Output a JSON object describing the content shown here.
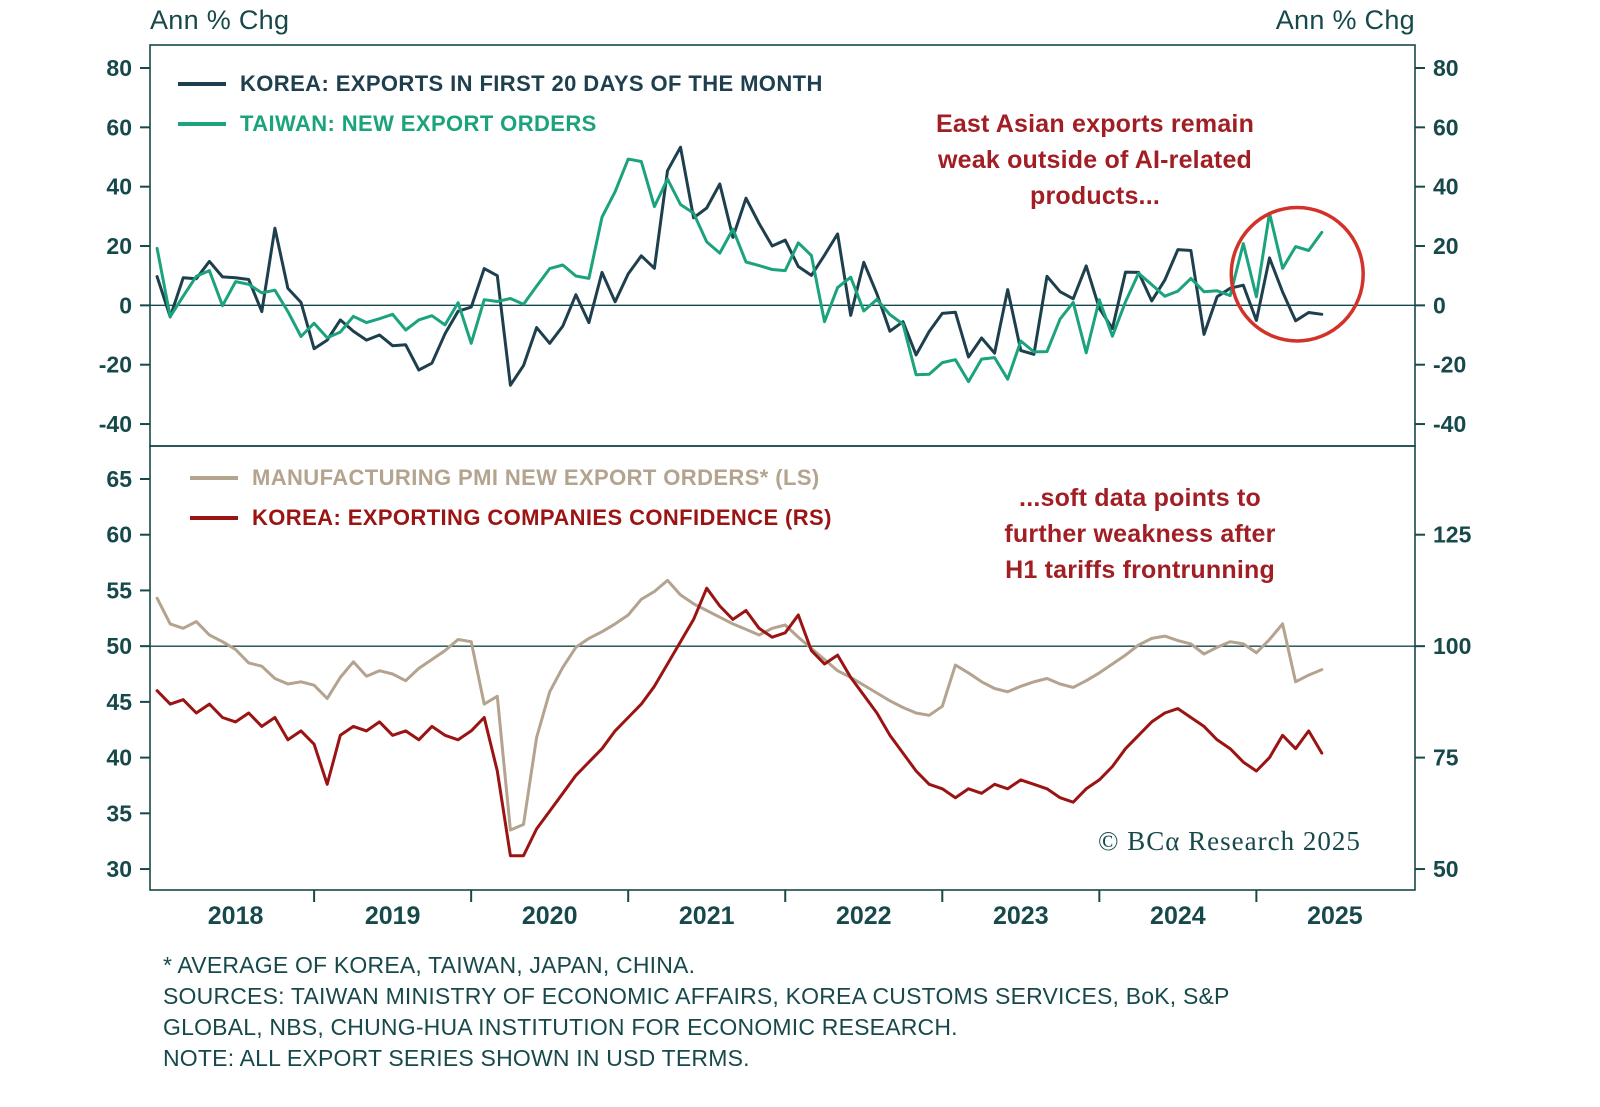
{
  "header": {
    "axis_title_left": "Ann % Chg",
    "axis_title_right": "Ann % Chg"
  },
  "x_axis": {
    "xlim": [
      2017.955,
      2026.01
    ],
    "tick_years": [
      2019,
      2020,
      2021,
      2022,
      2023,
      2024,
      2025
    ],
    "label_years": [
      2018,
      2019,
      2020,
      2021,
      2022,
      2023,
      2024,
      2025
    ]
  },
  "chart_data": [
    {
      "type": "line",
      "panel": "top",
      "x_start": 2018.0,
      "x_step": 0.083333,
      "ylim": [
        -47.4,
        87.75
      ],
      "yticks_left": [
        80,
        60,
        40,
        20,
        0,
        -20,
        -40
      ],
      "yticks_right": [
        80,
        60,
        40,
        20,
        0,
        -20,
        -40
      ],
      "ref_line": 0,
      "legend_position": "top-left",
      "series": [
        {
          "name": "KOREA: EXPORTS IN FIRST 20 DAYS OF THE MONTH",
          "color": "#1e3f4d",
          "axis": "left",
          "values": [
            9.7,
            -3.9,
            9.3,
            9.0,
            14.8,
            9.6,
            9.3,
            8.7,
            -2.1,
            26.0,
            5.7,
            1.0,
            -14.6,
            -11.7,
            -4.9,
            -8.7,
            -11.7,
            -10.0,
            -13.6,
            -13.3,
            -21.8,
            -19.5,
            -9.6,
            -2.0,
            -0.6,
            12.4,
            10.0,
            -26.9,
            -20.3,
            -7.5,
            -12.8,
            -7.0,
            3.6,
            -5.8,
            11.1,
            1.2,
            10.6,
            16.7,
            12.5,
            45.4,
            53.3,
            29.5,
            32.8,
            40.9,
            22.9,
            36.1,
            27.6,
            20.0,
            22.0,
            13.1,
            10.1,
            16.9,
            24.1,
            -3.4,
            14.5,
            3.9,
            -8.7,
            -5.5,
            -16.7,
            -8.8,
            -2.7,
            -2.3,
            -17.4,
            -11.0,
            -16.1,
            5.3,
            -15.2,
            -16.5,
            9.8,
            4.6,
            2.2,
            13.3,
            -1.0,
            -7.8,
            11.2,
            11.1,
            1.5,
            8.5,
            18.8,
            18.5,
            -9.8,
            2.9,
            5.8,
            6.8,
            -5.1,
            16.0,
            4.5,
            -5.2,
            -2.4,
            -3.0
          ]
        },
        {
          "name": "TAIWAN: NEW EXPORT ORDERS",
          "color": "#1ba37d",
          "axis": "left",
          "values": [
            19.2,
            -3.8,
            3.1,
            9.8,
            11.7,
            -0.1,
            8.0,
            7.1,
            4.2,
            5.1,
            -2.1,
            -10.5,
            -6.0,
            -10.9,
            -9.0,
            -3.7,
            -5.8,
            -4.5,
            -3.0,
            -8.3,
            -4.9,
            -3.5,
            -6.6,
            0.9,
            -12.8,
            1.9,
            1.3,
            2.3,
            0.4,
            6.5,
            12.4,
            13.6,
            9.9,
            9.1,
            29.7,
            38.3,
            49.3,
            48.5,
            33.3,
            42.6,
            34.0,
            31.1,
            21.4,
            17.6,
            25.7,
            14.6,
            13.4,
            12.1,
            11.7,
            21.1,
            16.8,
            -5.5,
            6.0,
            9.5,
            -1.9,
            2.0,
            -3.1,
            -6.3,
            -23.4,
            -23.2,
            -19.3,
            -18.3,
            -25.7,
            -18.1,
            -17.6,
            -24.9,
            -12.0,
            -15.7,
            -15.6,
            -4.6,
            1.0,
            -16.0,
            1.9,
            -10.4,
            1.2,
            10.8,
            7.0,
            3.1,
            4.8,
            9.1,
            4.6,
            4.9,
            3.3,
            20.8,
            2.9,
            31.1,
            12.5,
            19.8,
            18.5,
            24.6
          ]
        }
      ],
      "annotation": {
        "text": "East Asian exports remain\nweak outside of AI-related\nproducts...",
        "color": "#a01e24"
      },
      "highlight": {
        "cx_year": 2025.26,
        "cy_value": 10.5,
        "rx_years": 0.42,
        "ry_units": 22.5,
        "color": "#d23228"
      }
    },
    {
      "type": "line",
      "panel": "bottom",
      "x_start": 2018.0,
      "x_step": 0.083333,
      "ylim": [
        28.12,
        67.96
      ],
      "yticks_left": [
        65,
        60,
        55,
        50,
        45,
        40,
        35,
        30
      ],
      "yticks_right": [
        125,
        100,
        75,
        50
      ],
      "right_map": {
        "ls_base": 50,
        "rs_base": 100,
        "rs_per_ls": 2.5
      },
      "ref_line": 50,
      "legend_position": "top-left",
      "series": [
        {
          "name": "MANUFACTURING PMI NEW EXPORT ORDERS* (LS)",
          "color": "#b3a38f",
          "axis": "left",
          "values": [
            54.3,
            52.0,
            51.6,
            52.2,
            51.0,
            50.4,
            49.7,
            48.5,
            48.2,
            47.1,
            46.6,
            46.8,
            46.5,
            45.3,
            47.2,
            48.6,
            47.3,
            47.8,
            47.5,
            46.9,
            48.0,
            48.8,
            49.6,
            50.6,
            50.4,
            44.8,
            45.5,
            33.5,
            34.0,
            41.8,
            45.9,
            48.1,
            49.9,
            50.7,
            51.3,
            52.0,
            52.8,
            54.2,
            54.9,
            55.9,
            54.6,
            53.8,
            53.2,
            52.6,
            52.0,
            51.5,
            51.0,
            51.6,
            51.9,
            50.8,
            49.8,
            48.8,
            47.8,
            47.2,
            46.5,
            45.8,
            45.1,
            44.5,
            44.0,
            43.8,
            44.6,
            48.3,
            47.6,
            46.8,
            46.2,
            45.9,
            46.4,
            46.8,
            47.1,
            46.6,
            46.3,
            46.9,
            47.6,
            48.4,
            49.2,
            50.1,
            50.7,
            50.9,
            50.5,
            50.2,
            49.3,
            49.9,
            50.4,
            50.2,
            49.4,
            50.6,
            52.0,
            46.8,
            47.4,
            47.9
          ]
        },
        {
          "name": "KOREA: EXPORTING COMPANIES CONFIDENCE (RS)",
          "color": "#9b1414",
          "axis": "right",
          "values": [
            90,
            87,
            88,
            85,
            87,
            84,
            83,
            85,
            82,
            84,
            79,
            81,
            78,
            69,
            80,
            82,
            81,
            83,
            80,
            81,
            79,
            82,
            80,
            79,
            81,
            84,
            72,
            53,
            53,
            59,
            63,
            67,
            71,
            74,
            77,
            81,
            84,
            87,
            91,
            96,
            101,
            106,
            113,
            109,
            106,
            108,
            104,
            102,
            103,
            107,
            99,
            96,
            98,
            93,
            89,
            85,
            80,
            76,
            72,
            69,
            68,
            66,
            68,
            67,
            69,
            68,
            70,
            69,
            68,
            66,
            65,
            68,
            70,
            73,
            77,
            80,
            83,
            85,
            86,
            84,
            82,
            79,
            77,
            74,
            72,
            75,
            80,
            77,
            81,
            76
          ]
        }
      ],
      "annotation": {
        "text": "...soft data points to\nfurther weakness after\nH1 tariffs frontrunning",
        "color": "#a01e24"
      }
    }
  ],
  "footer": {
    "copyright": "© BCα Research 2025"
  },
  "footnotes": [
    "* AVERAGE OF KOREA, TAIWAN, JAPAN, CHINA.",
    "SOURCES: TAIWAN MINISTRY OF ECONOMIC AFFAIRS, KOREA CUSTOMS SERVICES, BoK, S&P",
    "GLOBAL, NBS, CHUNG-HUA INSTITUTION FOR ECONOMIC RESEARCH.",
    "NOTE: ALL EXPORT SERIES SHOWN IN USD TERMS."
  ]
}
